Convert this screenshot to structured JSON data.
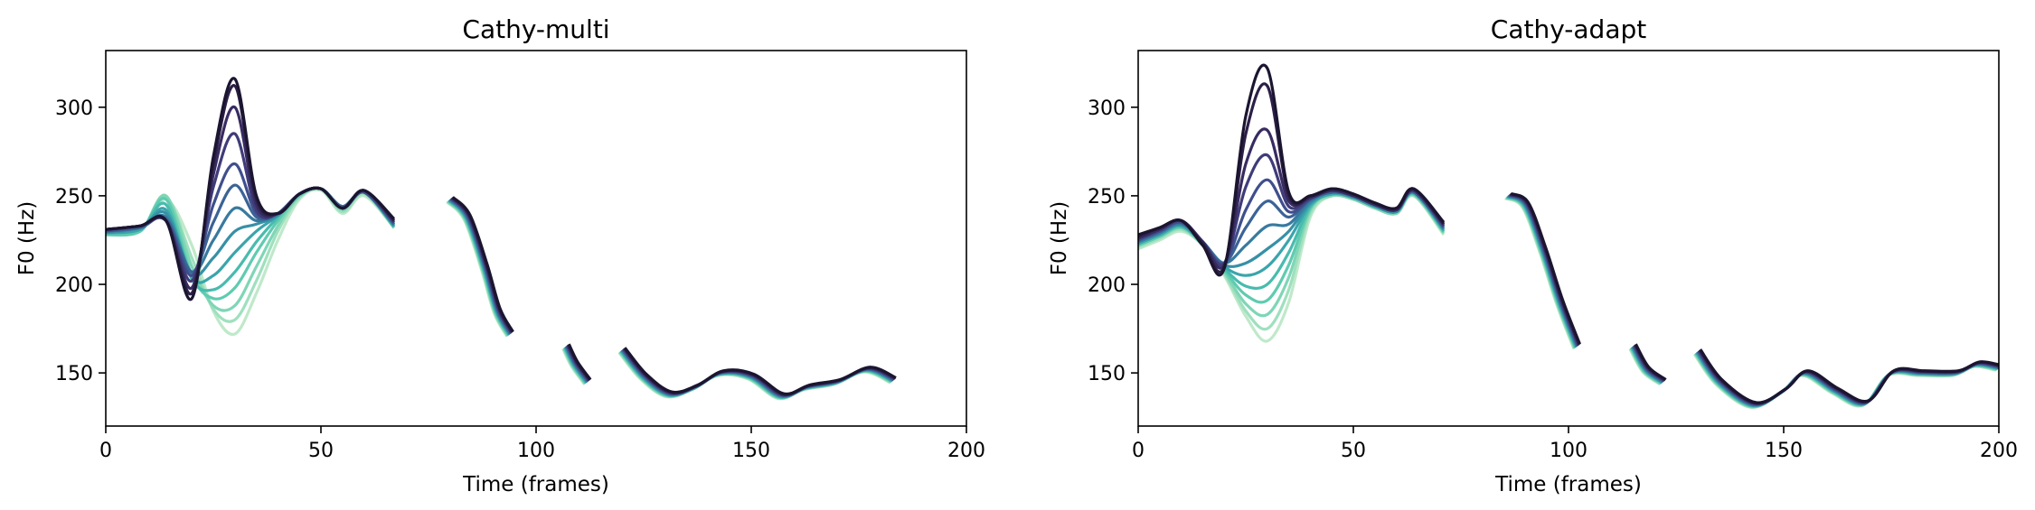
{
  "chart_data": [
    {
      "type": "line",
      "title": "Cathy-multi",
      "xlabel": "Time (frames)",
      "ylabel": "F0 (Hz)",
      "xlim": [
        0,
        200
      ],
      "ylim": [
        120,
        332
      ],
      "xticks": [
        0,
        50,
        100,
        150,
        200
      ],
      "yticks": [
        150,
        200,
        250,
        300
      ],
      "grid": false,
      "legend": "none",
      "palette": [
        "#bfe9ca",
        "#9fe0be",
        "#7fd6b6",
        "#5fcbb0",
        "#48bbae",
        "#3aa5ab",
        "#3790a6",
        "#387a9f",
        "#3b6396",
        "#3f4e8c",
        "#3f3c79",
        "#382b61",
        "#2c1f47",
        "#1b1530"
      ],
      "peak_series": [
        {
          "x": [
            0,
            8,
            14,
            20,
            25,
            30,
            35,
            40,
            45,
            50,
            55,
            60,
            67
          ],
          "y": [
            228,
            230,
            248,
            222,
            185,
            172,
            195,
            225,
            248,
            253,
            240,
            250,
            232
          ]
        },
        {
          "x": [
            0,
            8,
            14,
            20,
            25,
            30,
            35,
            40,
            45,
            50,
            55,
            60,
            67
          ],
          "y": [
            228,
            230,
            249,
            215,
            186,
            180,
            202,
            230,
            249,
            254,
            241,
            251,
            232
          ]
        },
        {
          "x": [
            0,
            8,
            14,
            20,
            25,
            30,
            35,
            40,
            45,
            50,
            55,
            60,
            67
          ],
          "y": [
            228,
            230,
            250,
            210,
            188,
            188,
            210,
            233,
            250,
            254,
            242,
            252,
            232
          ]
        },
        {
          "x": [
            0,
            8,
            14,
            20,
            25,
            30,
            35,
            40,
            45,
            50,
            55,
            60,
            67
          ],
          "y": [
            228,
            230,
            248,
            205,
            192,
            198,
            218,
            236,
            250,
            254,
            243,
            252,
            232
          ]
        },
        {
          "x": [
            0,
            8,
            14,
            20,
            25,
            30,
            35,
            40,
            45,
            50,
            55,
            60,
            67
          ],
          "y": [
            229,
            231,
            245,
            203,
            197,
            207,
            224,
            238,
            251,
            254,
            244,
            252,
            233
          ]
        },
        {
          "x": [
            0,
            8,
            14,
            20,
            25,
            30,
            35,
            40,
            45,
            50,
            55,
            60,
            67
          ],
          "y": [
            229,
            231,
            242,
            204,
            205,
            218,
            230,
            239,
            251,
            254,
            244,
            252,
            233
          ]
        },
        {
          "x": [
            0,
            8,
            14,
            20,
            25,
            30,
            35,
            40,
            45,
            50,
            55,
            60,
            67
          ],
          "y": [
            229,
            232,
            240,
            206,
            215,
            230,
            234,
            239,
            251,
            254,
            244,
            252,
            233
          ]
        },
        {
          "x": [
            0,
            8,
            14,
            20,
            25,
            30,
            35,
            40,
            45,
            50,
            55,
            60,
            67
          ],
          "y": [
            230,
            232,
            238,
            207,
            225,
            243,
            236,
            240,
            251,
            254,
            244,
            252,
            234
          ]
        },
        {
          "x": [
            0,
            8,
            14,
            20,
            25,
            30,
            35,
            40,
            45,
            50,
            55,
            60,
            67
          ],
          "y": [
            230,
            232,
            237,
            207,
            235,
            256,
            238,
            240,
            251,
            254,
            244,
            252,
            234
          ]
        },
        {
          "x": [
            0,
            8,
            14,
            20,
            25,
            30,
            35,
            40,
            45,
            50,
            55,
            60,
            67
          ],
          "y": [
            230,
            233,
            236,
            205,
            245,
            268,
            240,
            240,
            251,
            254,
            243,
            252,
            235
          ]
        },
        {
          "x": [
            0,
            8,
            14,
            20,
            25,
            30,
            35,
            40,
            45,
            50,
            55,
            60,
            67
          ],
          "y": [
            231,
            233,
            236,
            202,
            255,
            285,
            242,
            240,
            251,
            254,
            243,
            253,
            235
          ]
        },
        {
          "x": [
            0,
            8,
            14,
            20,
            25,
            30,
            35,
            40,
            45,
            50,
            55,
            60,
            67
          ],
          "y": [
            231,
            233,
            236,
            198,
            262,
            300,
            245,
            240,
            251,
            254,
            243,
            253,
            236
          ]
        },
        {
          "x": [
            0,
            8,
            14,
            20,
            25,
            30,
            35,
            40,
            45,
            50,
            55,
            60,
            67
          ],
          "y": [
            231,
            233,
            236,
            195,
            268,
            312,
            248,
            240,
            251,
            254,
            243,
            253,
            236
          ]
        },
        {
          "x": [
            0,
            8,
            14,
            20,
            25,
            30,
            35,
            40,
            45,
            50,
            55,
            60,
            67
          ],
          "y": [
            231,
            233,
            236,
            192,
            272,
            316,
            250,
            240,
            251,
            254,
            243,
            253,
            237
          ]
        }
      ],
      "tail_segments": [
        {
          "x": [
            80,
            84,
            88,
            91,
            94
          ],
          "y": [
            248,
            238,
            210,
            185,
            172
          ]
        },
        {
          "x": [
            107,
            109,
            112
          ],
          "y": [
            165,
            155,
            145
          ]
        },
        {
          "x": [
            120,
            125,
            131,
            137,
            143,
            150,
            157,
            163,
            170,
            177,
            183
          ],
          "y": [
            163,
            148,
            138,
            142,
            150,
            148,
            137,
            142,
            145,
            152,
            146
          ]
        }
      ]
    },
    {
      "type": "line",
      "title": "Cathy-adapt",
      "xlabel": "Time (frames)",
      "ylabel": "F0 (Hz)",
      "xlim": [
        0,
        200
      ],
      "ylim": [
        120,
        332
      ],
      "xticks": [
        0,
        50,
        100,
        150,
        200
      ],
      "yticks": [
        150,
        200,
        250,
        300
      ],
      "grid": false,
      "legend": "none",
      "palette": [
        "#bfe9ca",
        "#9fe0be",
        "#7fd6b6",
        "#5fcbb0",
        "#48bbae",
        "#3aa5ab",
        "#3790a6",
        "#387a9f",
        "#3b6396",
        "#3f4e8c",
        "#3f3c79",
        "#382b61",
        "#2c1f47",
        "#1b1530"
      ],
      "peak_series": [
        {
          "x": [
            0,
            5,
            10,
            15,
            20,
            25,
            30,
            35,
            40,
            45,
            50,
            55,
            60,
            64,
            71
          ],
          "y": [
            220,
            225,
            230,
            222,
            205,
            182,
            168,
            190,
            238,
            250,
            248,
            243,
            240,
            250,
            228
          ]
        },
        {
          "x": [
            0,
            5,
            10,
            15,
            20,
            25,
            30,
            35,
            40,
            45,
            50,
            55,
            60,
            64,
            71
          ],
          "y": [
            221,
            226,
            231,
            222,
            206,
            185,
            175,
            197,
            240,
            250,
            248,
            243,
            240,
            250,
            229
          ]
        },
        {
          "x": [
            0,
            5,
            10,
            15,
            20,
            25,
            30,
            35,
            40,
            45,
            50,
            55,
            60,
            64,
            71
          ],
          "y": [
            222,
            227,
            232,
            222,
            207,
            189,
            183,
            204,
            242,
            250,
            248,
            243,
            240,
            251,
            229
          ]
        },
        {
          "x": [
            0,
            5,
            10,
            15,
            20,
            25,
            30,
            35,
            40,
            45,
            50,
            55,
            60,
            64,
            71
          ],
          "y": [
            222,
            227,
            232,
            223,
            208,
            194,
            191,
            211,
            243,
            251,
            249,
            244,
            241,
            251,
            230
          ]
        },
        {
          "x": [
            0,
            5,
            10,
            15,
            20,
            25,
            30,
            35,
            40,
            45,
            50,
            55,
            60,
            64,
            71
          ],
          "y": [
            223,
            228,
            233,
            223,
            209,
            199,
            200,
            218,
            244,
            251,
            249,
            244,
            241,
            251,
            230
          ]
        },
        {
          "x": [
            0,
            5,
            10,
            15,
            20,
            25,
            30,
            35,
            40,
            45,
            50,
            55,
            60,
            64,
            71
          ],
          "y": [
            223,
            228,
            233,
            223,
            210,
            205,
            210,
            225,
            245,
            251,
            249,
            244,
            241,
            252,
            231
          ]
        },
        {
          "x": [
            0,
            5,
            10,
            15,
            20,
            25,
            30,
            35,
            40,
            45,
            50,
            55,
            60,
            64,
            71
          ],
          "y": [
            224,
            229,
            234,
            224,
            211,
            212,
            220,
            230,
            246,
            252,
            249,
            244,
            241,
            252,
            231
          ]
        },
        {
          "x": [
            0,
            5,
            10,
            15,
            20,
            25,
            30,
            35,
            40,
            45,
            50,
            55,
            60,
            64,
            71
          ],
          "y": [
            224,
            229,
            234,
            224,
            212,
            222,
            233,
            234,
            247,
            252,
            250,
            245,
            242,
            252,
            232
          ]
        },
        {
          "x": [
            0,
            5,
            10,
            15,
            20,
            25,
            30,
            35,
            40,
            45,
            50,
            55,
            60,
            64,
            71
          ],
          "y": [
            225,
            230,
            235,
            224,
            212,
            232,
            247,
            238,
            248,
            252,
            250,
            245,
            242,
            252,
            232
          ]
        },
        {
          "x": [
            0,
            5,
            10,
            15,
            20,
            25,
            30,
            35,
            40,
            45,
            50,
            55,
            60,
            64,
            71
          ],
          "y": [
            225,
            230,
            235,
            224,
            212,
            242,
            259,
            241,
            248,
            253,
            250,
            245,
            242,
            253,
            233
          ]
        },
        {
          "x": [
            0,
            5,
            10,
            15,
            20,
            25,
            30,
            35,
            40,
            45,
            50,
            55,
            60,
            64,
            71
          ],
          "y": [
            226,
            231,
            236,
            224,
            212,
            255,
            273,
            244,
            249,
            253,
            250,
            245,
            242,
            253,
            233
          ]
        },
        {
          "x": [
            0,
            5,
            10,
            15,
            20,
            25,
            30,
            35,
            40,
            45,
            50,
            55,
            60,
            64,
            71
          ],
          "y": [
            226,
            231,
            236,
            224,
            211,
            268,
            287,
            247,
            249,
            253,
            250,
            245,
            242,
            253,
            234
          ]
        },
        {
          "x": [
            0,
            5,
            10,
            15,
            20,
            25,
            30,
            35,
            40,
            45,
            50,
            55,
            60,
            64,
            71
          ],
          "y": [
            227,
            232,
            236,
            223,
            210,
            285,
            312,
            250,
            250,
            254,
            251,
            246,
            243,
            254,
            234
          ]
        },
        {
          "x": [
            0,
            5,
            10,
            15,
            20,
            25,
            30,
            35,
            40,
            45,
            50,
            55,
            60,
            64,
            71
          ],
          "y": [
            228,
            232,
            236,
            222,
            209,
            295,
            322,
            252,
            250,
            254,
            251,
            246,
            243,
            254,
            235
          ]
        }
      ],
      "tail_segments": [
        {
          "x": [
            86,
            90,
            94,
            98,
            102
          ],
          "y": [
            250,
            245,
            220,
            190,
            165
          ]
        },
        {
          "x": [
            115,
            118,
            122
          ],
          "y": [
            165,
            152,
            145
          ]
        },
        {
          "x": [
            130,
            135,
            143,
            150,
            155,
            162,
            169,
            175,
            182,
            190,
            195,
            200
          ],
          "y": [
            162,
            145,
            132,
            140,
            150,
            140,
            133,
            150,
            150,
            150,
            155,
            153
          ]
        }
      ]
    }
  ]
}
